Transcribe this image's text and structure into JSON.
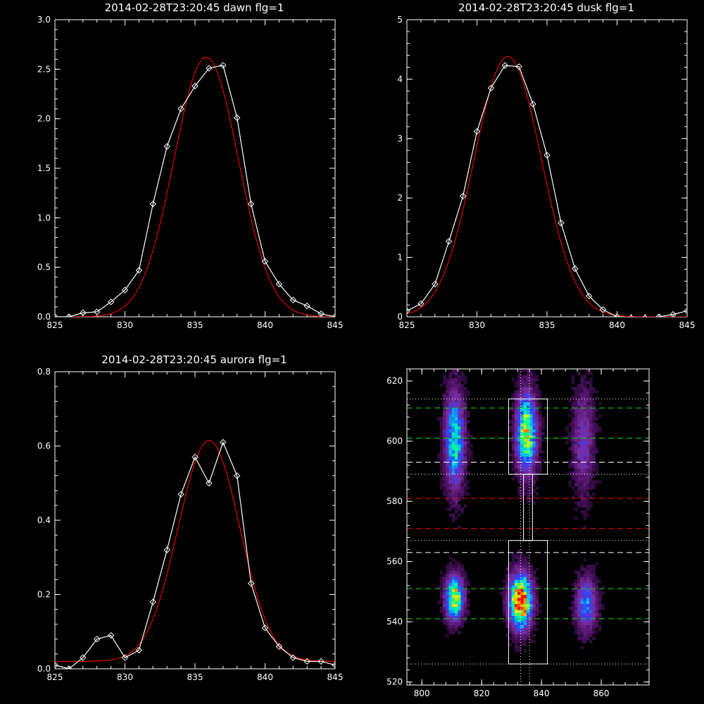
{
  "chart_data": [
    {
      "type": "line",
      "title": "2014-02-28T23:20:45 dawn flg=1",
      "xlim": [
        825,
        845
      ],
      "ylim": [
        0,
        3
      ],
      "x_ticks": [
        "825",
        "830",
        "835",
        "840",
        "845"
      ],
      "y_ticks": [
        "0.0",
        "0.5",
        "1.0",
        "1.5",
        "2.0",
        "2.5",
        "3.0"
      ],
      "series": [
        {
          "color": "#ffffff",
          "marker": "diamond",
          "x": [
            825,
            826,
            827,
            828,
            829,
            830,
            831,
            832,
            833,
            834,
            835,
            836,
            837,
            838,
            839,
            840,
            841,
            842,
            843,
            844,
            845
          ],
          "y": [
            0.0,
            0.0,
            0.04,
            0.05,
            0.15,
            0.27,
            0.47,
            1.14,
            1.72,
            2.1,
            2.33,
            2.51,
            2.54,
            2.01,
            1.14,
            0.56,
            0.33,
            0.17,
            0.11,
            0.03,
            0.0
          ]
        },
        {
          "color": "#d00000",
          "marker": "none",
          "fit": {
            "amplitude": 2.62,
            "center": 835.8,
            "sigma": 2.3,
            "baseline": 0.0
          }
        }
      ]
    },
    {
      "type": "line",
      "title": "2014-02-28T23:20:45 dusk flg=1",
      "xlim": [
        825,
        845
      ],
      "ylim": [
        0,
        5
      ],
      "x_ticks": [
        "825",
        "830",
        "835",
        "840",
        "845"
      ],
      "y_ticks": [
        "0",
        "1",
        "2",
        "3",
        "4",
        "5"
      ],
      "series": [
        {
          "color": "#ffffff",
          "marker": "diamond",
          "x": [
            825,
            826,
            827,
            828,
            829,
            830,
            831,
            832,
            833,
            834,
            835,
            836,
            837,
            838,
            839,
            840,
            841,
            842,
            843,
            844,
            845
          ],
          "y": [
            0.1,
            0.22,
            0.55,
            1.27,
            2.03,
            3.12,
            3.85,
            4.23,
            4.21,
            3.58,
            2.72,
            1.58,
            0.81,
            0.35,
            0.12,
            0.0,
            -0.02,
            -0.02,
            0.0,
            0.04,
            0.1
          ]
        },
        {
          "color": "#d00000",
          "marker": "none",
          "fit": {
            "amplitude": 4.38,
            "center": 832.2,
            "sigma": 2.4,
            "baseline": 0.0
          }
        }
      ]
    },
    {
      "type": "line",
      "title": "2014-02-28T23:20:45 aurora flg=1",
      "xlim": [
        825,
        845
      ],
      "ylim": [
        0,
        0.8
      ],
      "x_ticks": [
        "825",
        "830",
        "835",
        "840",
        "845"
      ],
      "y_ticks": [
        "0.0",
        "0.2",
        "0.4",
        "0.6",
        "0.8"
      ],
      "series": [
        {
          "color": "#ffffff",
          "marker": "diamond",
          "x": [
            825,
            826,
            827,
            828,
            829,
            830,
            831,
            832,
            833,
            834,
            835,
            836,
            837,
            838,
            839,
            840,
            841,
            842,
            843,
            844,
            845
          ],
          "y": [
            0.01,
            0.0,
            0.03,
            0.08,
            0.09,
            0.03,
            0.05,
            0.18,
            0.32,
            0.47,
            0.57,
            0.5,
            0.61,
            0.52,
            0.23,
            0.11,
            0.06,
            0.03,
            0.02,
            0.02,
            0.01
          ]
        },
        {
          "color": "#d00000",
          "marker": "none",
          "fit": {
            "amplitude": 0.595,
            "center": 836.0,
            "sigma": 2.2,
            "baseline": 0.02
          }
        }
      ]
    },
    {
      "type": "heatmap",
      "xlim": [
        795,
        876
      ],
      "ylim": [
        519,
        624
      ],
      "x_ticks": [
        "800",
        "820",
        "840",
        "860"
      ],
      "y_ticks": [
        "520",
        "540",
        "560",
        "580",
        "600",
        "620"
      ],
      "colormap": [
        "#000000",
        "#4a1060",
        "#7a2ea0",
        "#3040ff",
        "#00c0ff",
        "#00ff90",
        "#e8f000",
        "#ff8000",
        "#ff0000"
      ],
      "blobs": [
        {
          "cx": 811,
          "cy": 548,
          "sx": 2.0,
          "sy": 5.0,
          "amp": 0.75
        },
        {
          "cx": 811,
          "cy": 600,
          "sx": 2.2,
          "sy": 11,
          "amp": 0.55
        },
        {
          "cx": 833,
          "cy": 547,
          "sx": 2.5,
          "sy": 6.0,
          "amp": 1.0
        },
        {
          "cx": 835,
          "cy": 603,
          "sx": 2.3,
          "sy": 9.0,
          "amp": 0.72
        },
        {
          "cx": 855,
          "cy": 546,
          "sx": 2.3,
          "sy": 6.0,
          "amp": 0.42
        },
        {
          "cx": 854,
          "cy": 600,
          "sx": 2.5,
          "sy": 12,
          "amp": 0.25
        }
      ],
      "boxes": [
        {
          "x0": 829,
          "x1": 842,
          "y0": 526,
          "y1": 567
        },
        {
          "x0": 829,
          "x1": 842,
          "y0": 589,
          "y1": 614
        },
        {
          "x0": 834,
          "x1": 837,
          "y0": 567,
          "y1": 589
        }
      ],
      "h_lines": [
        {
          "y": 526,
          "color": "#ffffff",
          "style": "dotted"
        },
        {
          "y": 541,
          "color": "#00e000",
          "style": "dashed"
        },
        {
          "y": 551,
          "color": "#00e000",
          "style": "dashed"
        },
        {
          "y": 563,
          "color": "#ffffff",
          "style": "dashed"
        },
        {
          "y": 567,
          "color": "#ffffff",
          "style": "dotted"
        },
        {
          "y": 571,
          "color": "#ff0000",
          "style": "dashed"
        },
        {
          "y": 581,
          "color": "#ff0000",
          "style": "dashed"
        },
        {
          "y": 589,
          "color": "#ffffff",
          "style": "dotted"
        },
        {
          "y": 593,
          "color": "#ffffff",
          "style": "dashed"
        },
        {
          "y": 601,
          "color": "#00e000",
          "style": "dashed"
        },
        {
          "y": 611,
          "color": "#00e000",
          "style": "dashed"
        },
        {
          "y": 614,
          "color": "#ffffff",
          "style": "dotted"
        }
      ],
      "v_lines": [
        {
          "x": 833,
          "color": "#ffffff",
          "style": "dotted"
        },
        {
          "x": 836,
          "color": "#ffffff",
          "style": "dotted"
        }
      ]
    }
  ]
}
